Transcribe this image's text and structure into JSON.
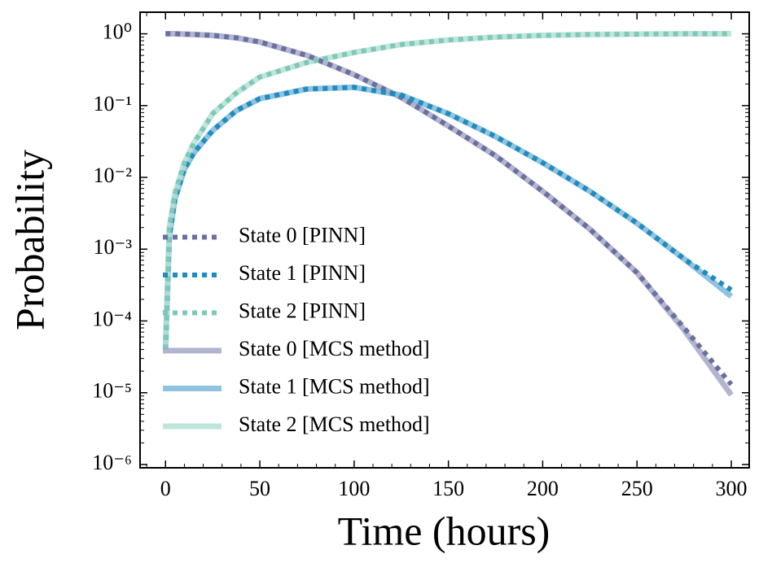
{
  "chart_data": {
    "type": "line",
    "xlabel": "Time (hours)",
    "ylabel": "Probability",
    "yscale": "log",
    "legend": "lower left",
    "x": [
      0,
      2,
      5,
      10,
      15,
      25,
      37.5,
      50,
      75,
      100,
      125,
      150,
      175,
      200,
      225,
      250,
      275,
      300
    ],
    "series": [
      {
        "name": "State 0 [PINN]",
        "color": "#6b6f9e",
        "linestyle": "dotted",
        "values": [
          1,
          1,
          1,
          0.99,
          0.98,
          0.95,
          0.88,
          0.77,
          0.5,
          0.27,
          0.13,
          0.052,
          0.02,
          0.0064,
          0.0019,
          0.00047,
          8e-05,
          1.3e-05
        ]
      },
      {
        "name": "State 1 [PINN]",
        "color": "#1f8bbf",
        "linestyle": "dotted",
        "values": [
          4e-05,
          0.0015,
          0.005,
          0.013,
          0.022,
          0.045,
          0.085,
          0.125,
          0.17,
          0.18,
          0.14,
          0.077,
          0.037,
          0.016,
          0.0064,
          0.0023,
          0.00073,
          0.00027
        ]
      },
      {
        "name": "State 2 [PINN]",
        "color": "#7fc8b8",
        "linestyle": "dotted",
        "values": [
          4e-05,
          0.002,
          0.006,
          0.016,
          0.03,
          0.077,
          0.15,
          0.25,
          0.4,
          0.55,
          0.71,
          0.82,
          0.9,
          0.95,
          0.98,
          0.99,
          1,
          1
        ]
      },
      {
        "name": "State 0 [MCS method]",
        "color": "#a5a8c8",
        "linestyle": "solid",
        "values": [
          1,
          1,
          1,
          0.99,
          0.98,
          0.95,
          0.88,
          0.77,
          0.5,
          0.27,
          0.13,
          0.052,
          0.02,
          0.0064,
          0.0019,
          0.00047,
          7.5e-05,
          9.3e-06
        ]
      },
      {
        "name": "State 1 [MCS method]",
        "color": "#7bb8d9",
        "linestyle": "solid",
        "values": [
          4e-05,
          0.0015,
          0.005,
          0.013,
          0.022,
          0.045,
          0.085,
          0.125,
          0.17,
          0.18,
          0.14,
          0.077,
          0.037,
          0.016,
          0.0064,
          0.0023,
          0.00073,
          0.00022
        ]
      },
      {
        "name": "State 2 [MCS method]",
        "color": "#b3e0d6",
        "linestyle": "solid",
        "values": [
          4e-05,
          0.002,
          0.006,
          0.016,
          0.03,
          0.077,
          0.15,
          0.25,
          0.4,
          0.55,
          0.71,
          0.82,
          0.9,
          0.95,
          0.98,
          0.99,
          1,
          1
        ]
      }
    ],
    "xlim": [
      -13.5,
      309.5
    ],
    "xticks": [
      0,
      50,
      100,
      150,
      200,
      250,
      300
    ],
    "ylim": [
      9e-07,
      2
    ],
    "yticks": [
      {
        "value": 1,
        "label": "10⁰"
      },
      {
        "value": 0.1,
        "label": "10⁻¹"
      },
      {
        "value": 0.01,
        "label": "10⁻²"
      },
      {
        "value": 0.001,
        "label": "10⁻³"
      },
      {
        "value": 0.0001,
        "label": "10⁻⁴"
      },
      {
        "value": 1e-05,
        "label": "10⁻⁵"
      },
      {
        "value": 1e-06,
        "label": "10⁻⁶"
      }
    ]
  }
}
